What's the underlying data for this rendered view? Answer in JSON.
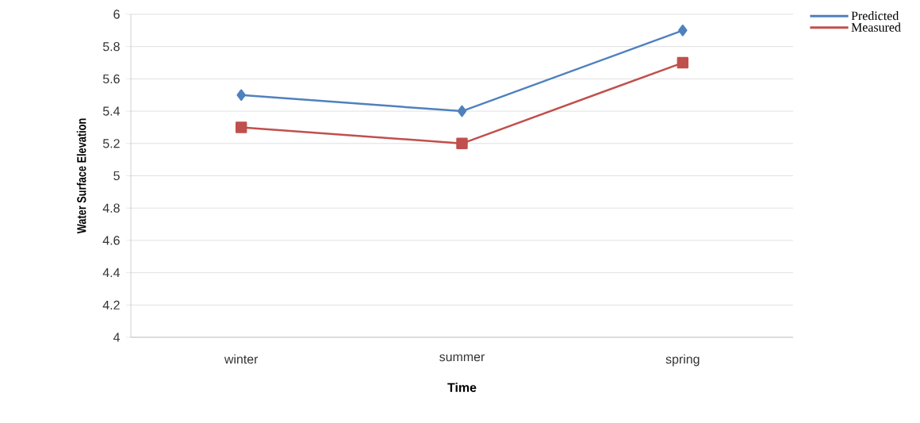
{
  "chart_data": {
    "type": "line",
    "xlabel": "Time",
    "ylabel": "Water Surface Elevation",
    "categories": [
      "winter",
      "summer",
      "spring"
    ],
    "series": [
      {
        "name": "Predicted",
        "color": "#4f81bd",
        "marker": "diamond",
        "values": [
          5.5,
          5.4,
          5.9
        ]
      },
      {
        "name": "Measured",
        "color": "#c0504d",
        "marker": "square",
        "values": [
          5.3,
          5.2,
          5.7
        ]
      }
    ],
    "ylim": [
      4,
      6
    ],
    "yticks": [
      4,
      4.2,
      4.4,
      4.6,
      4.8,
      5,
      5.2,
      5.4,
      5.6,
      5.8,
      6
    ],
    "grid": "y",
    "legend": "top right",
    "line_style": "solid"
  }
}
